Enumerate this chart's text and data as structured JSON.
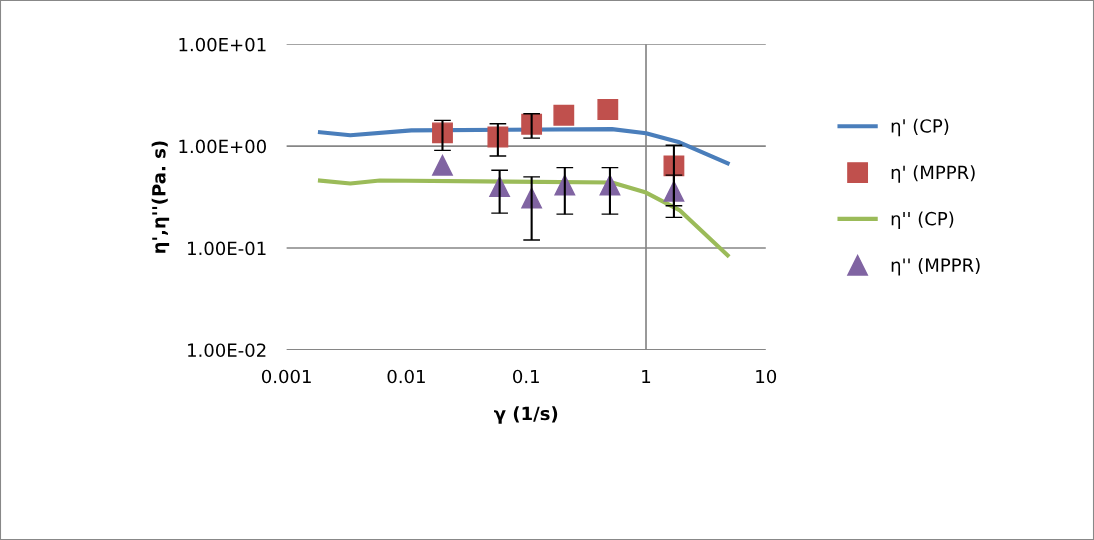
{
  "chart_data": {
    "type": "line",
    "xlabel": "γ (1/s)",
    "ylabel": "η',η''(Pa. s)",
    "log": "xy",
    "grid": "y",
    "legend": "right",
    "xlim": [
      0.001,
      10
    ],
    "xticks": [
      0.001,
      0.01,
      0.1,
      1,
      10
    ],
    "ylim": [
      0.01,
      10
    ],
    "yticks": [
      {
        "value": 0.01,
        "label": "1.00E-02"
      },
      {
        "value": 0.1,
        "label": "1.00E-01"
      },
      {
        "value": 1,
        "label": "1.00E+00"
      },
      {
        "value": 10,
        "label": "1.00E+01"
      }
    ],
    "ref_lines": [
      {
        "axis": "x",
        "value": 1,
        "color": "#868686"
      }
    ],
    "series": [
      {
        "name": "η' (CP)",
        "color": "#4a7ebb",
        "marker": "none",
        "x": [
          0.0019,
          0.0034,
          0.011,
          0.52,
          1.0,
          1.9,
          4.8
        ],
        "values": [
          1.37,
          1.28,
          1.43,
          1.47,
          1.34,
          1.09,
          0.68
        ]
      },
      {
        "name": "η' (MPPR)",
        "type": "scatter",
        "color": "#c0504d",
        "marker": "square",
        "x": [
          0.02,
          0.058,
          0.111,
          0.206,
          0.48,
          1.71
        ],
        "values": [
          1.35,
          1.23,
          1.64,
          2.01,
          2.29,
          0.64
        ],
        "errors": [
          0.44,
          0.43,
          0.44,
          null,
          null,
          0.38
        ]
      },
      {
        "name": "η'' (CP)",
        "color": "#9bbb59",
        "marker": "none",
        "x": [
          0.0019,
          0.0034,
          0.006,
          0.52,
          1.0,
          1.9,
          4.8
        ],
        "values": [
          0.46,
          0.43,
          0.46,
          0.44,
          0.35,
          0.236,
          0.085
        ]
      },
      {
        "name": "η'' (MPPR)",
        "type": "scatter",
        "color": "#8064a2",
        "marker": "triangle",
        "x": [
          0.02,
          0.06,
          0.111,
          0.21,
          0.5,
          1.71
        ],
        "values": [
          0.65,
          0.4,
          0.31,
          0.415,
          0.415,
          0.36
        ],
        "errors": [
          null,
          0.18,
          0.19,
          0.2,
          0.2,
          0.16
        ]
      }
    ]
  }
}
